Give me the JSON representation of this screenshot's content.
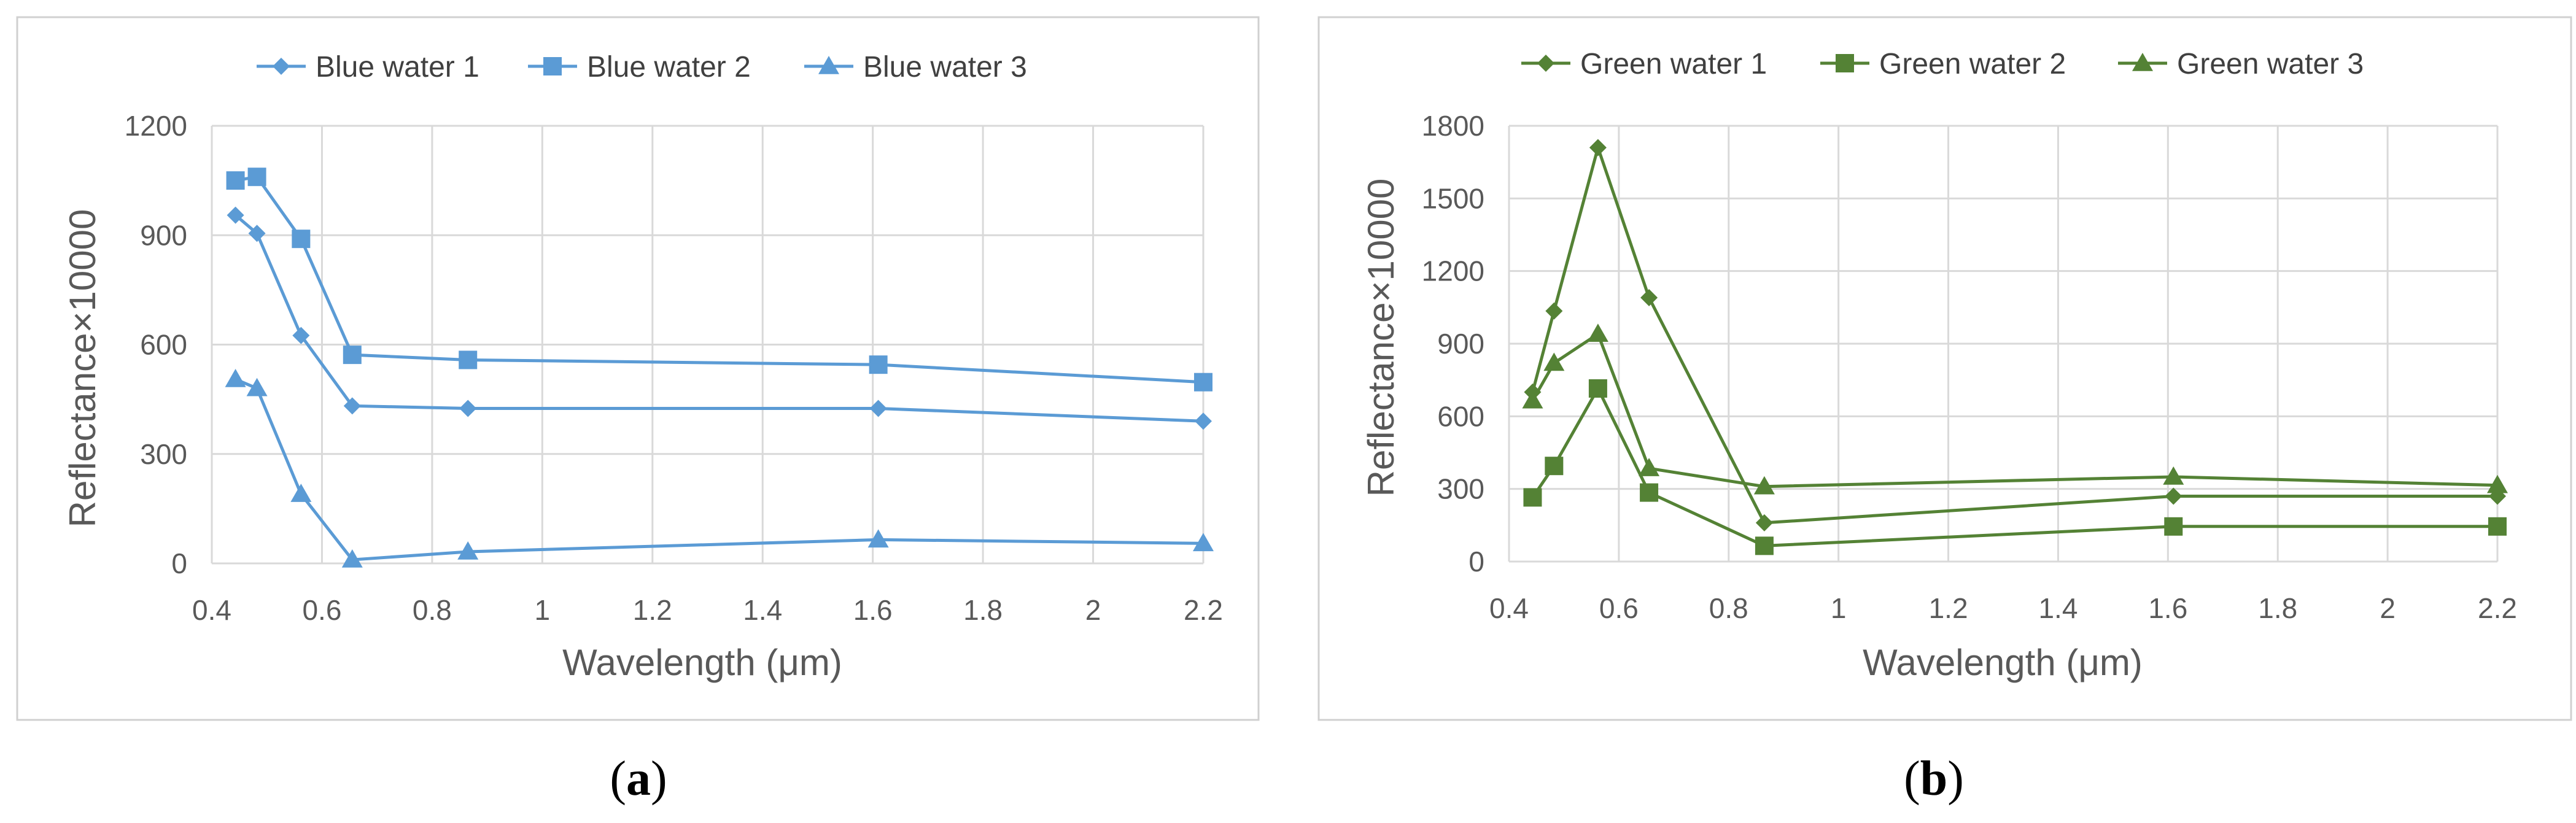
{
  "chart_data": [
    {
      "type": "line",
      "panel_label": "a",
      "xlabel": "Wavelength (μm)",
      "ylabel": "Reflectance×10000",
      "xlim": [
        0.4,
        2.2
      ],
      "ylim": [
        0,
        1200
      ],
      "x_ticks": [
        "0.4",
        "0.6",
        "0.8",
        "1",
        "1.2",
        "1.4",
        "1.6",
        "1.8",
        "2",
        "2.2"
      ],
      "y_ticks": [
        "0",
        "300",
        "600",
        "900",
        "1200"
      ],
      "grid": true,
      "legend_position": "top",
      "color": "#5b9bd5",
      "x": [
        0.443,
        0.482,
        0.562,
        0.655,
        0.865,
        1.61,
        2.2
      ],
      "series": [
        {
          "name": "Blue water 1",
          "marker": "diamond",
          "values": [
            955,
            905,
            625,
            432,
            425,
            425,
            390
          ]
        },
        {
          "name": "Blue water 2",
          "marker": "square",
          "values": [
            1050,
            1060,
            890,
            572,
            558,
            545,
            497
          ]
        },
        {
          "name": "Blue water 3",
          "marker": "triangle",
          "values": [
            505,
            480,
            190,
            10,
            32,
            65,
            55
          ]
        }
      ]
    },
    {
      "type": "line",
      "panel_label": "b",
      "xlabel": "Wavelength (μm)",
      "ylabel": "Reflectance×10000",
      "xlim": [
        0.4,
        2.2
      ],
      "ylim": [
        0,
        1800
      ],
      "x_ticks": [
        "0.4",
        "0.6",
        "0.8",
        "1",
        "1.2",
        "1.4",
        "1.6",
        "1.8",
        "2",
        "2.2"
      ],
      "y_ticks": [
        "0",
        "300",
        "600",
        "900",
        "1200",
        "1500",
        "1800"
      ],
      "grid": true,
      "legend_position": "top",
      "color": "#548235",
      "x": [
        0.443,
        0.482,
        0.562,
        0.655,
        0.865,
        1.61,
        2.2
      ],
      "series": [
        {
          "name": "Green water 1",
          "marker": "diamond",
          "values": [
            700,
            1035,
            1710,
            1090,
            160,
            270,
            270
          ]
        },
        {
          "name": "Green water 2",
          "marker": "square",
          "values": [
            265,
            395,
            715,
            285,
            65,
            145,
            145
          ]
        },
        {
          "name": "Green water 3",
          "marker": "triangle",
          "values": [
            665,
            820,
            940,
            385,
            310,
            350,
            315
          ]
        }
      ]
    }
  ]
}
